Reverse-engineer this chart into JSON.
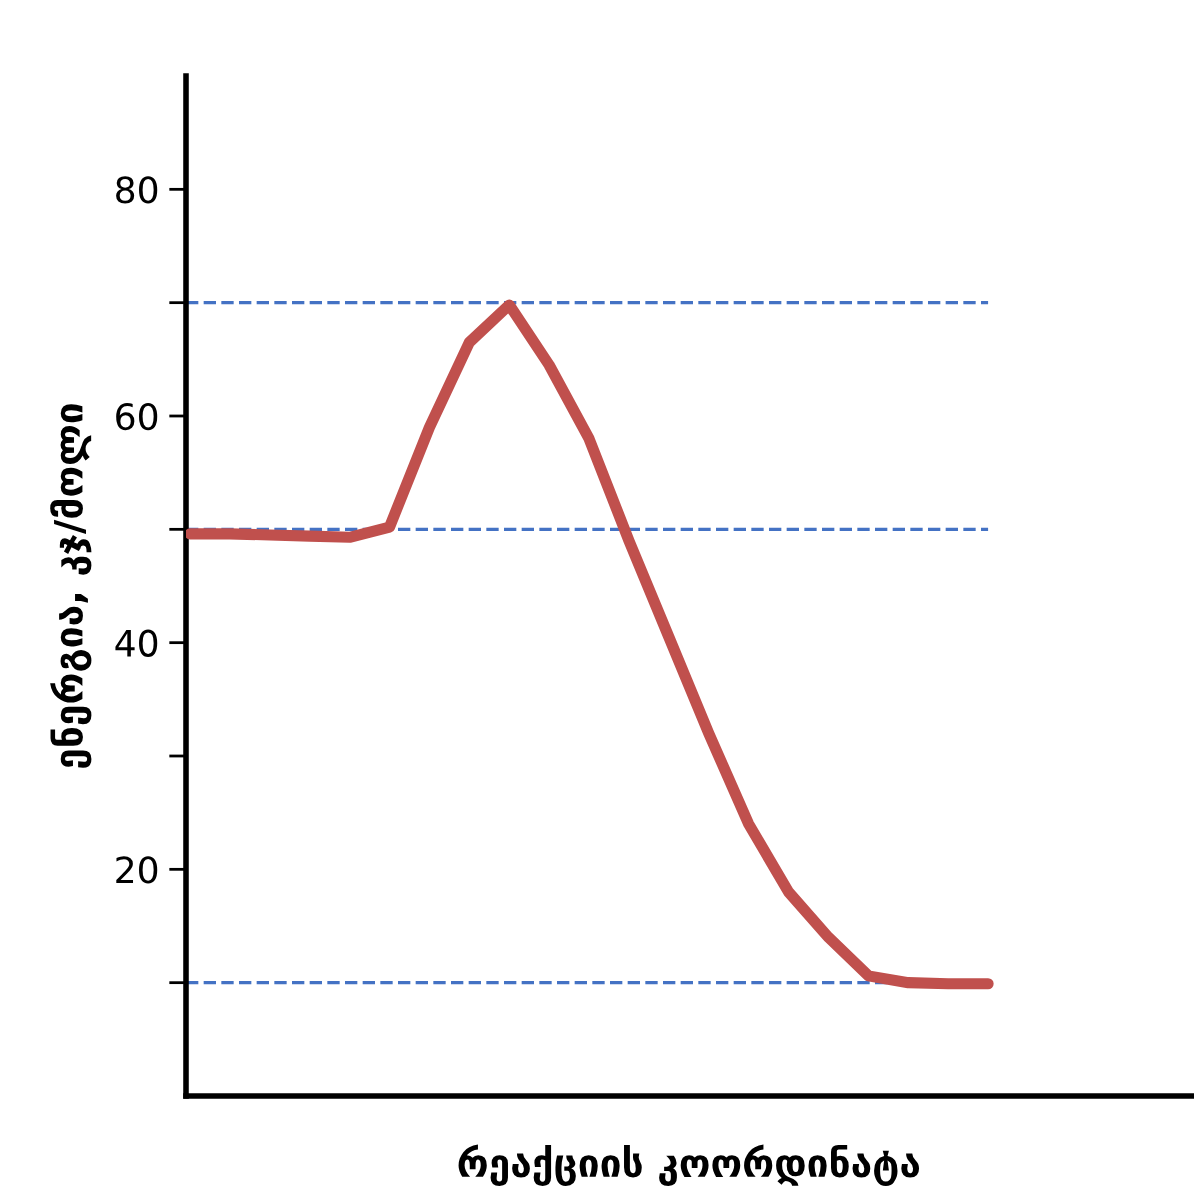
{
  "chart_data": {
    "type": "line",
    "xlabel": "რეაქციის კოორდინატა",
    "ylabel": "ენერგია, კჯ/მოლი",
    "categories": [
      null,
      null,
      null,
      null,
      null,
      null,
      null,
      null,
      null,
      null,
      null,
      null,
      null,
      null,
      null,
      null,
      null,
      null,
      null,
      null,
      null
    ],
    "series": [
      {
        "color": "#c0504d",
        "values": [
          49.6,
          49.6,
          49.5,
          49.4,
          49.3,
          50.2,
          59,
          66.5,
          69.8,
          64.5,
          58,
          49,
          40.5,
          32,
          24,
          18,
          14,
          10.6,
          10,
          9.9,
          9.9
        ]
      }
    ],
    "ylim": [
      0,
      90
    ],
    "yticks": [
      {
        "value": 10,
        "label": null
      },
      20,
      {
        "value": 30,
        "label": null
      },
      40,
      {
        "value": 50,
        "label": null
      },
      60,
      {
        "value": 70,
        "label": null
      },
      80
    ],
    "ref_lines": [
      {
        "axis": "y",
        "value": 70,
        "color": "#4472c4",
        "line_style": "dashed"
      },
      {
        "axis": "y",
        "value": 50,
        "color": "#4472c4",
        "line_style": "dashed"
      },
      {
        "axis": "y",
        "value": 10,
        "color": "#4472c4",
        "line_style": "dashed"
      }
    ],
    "grid": false,
    "legend": false,
    "marker": "none",
    "line_style": "solid"
  }
}
